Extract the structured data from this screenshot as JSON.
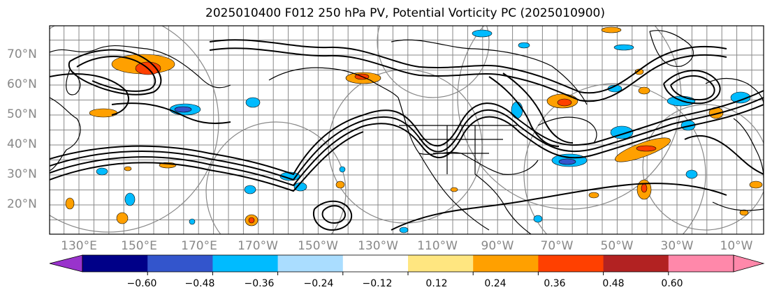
{
  "title": "2025010400 F012 250 hPa PV, Potential Vorticity PC (2025010900)",
  "map": {
    "projection": "plate-carree",
    "variable": "250 hPa PV",
    "lat_labels": [
      "70°N",
      "60°N",
      "50°N",
      "40°N",
      "30°N",
      "20°N"
    ],
    "lon_labels": [
      "130°E",
      "150°E",
      "170°E",
      "170°W",
      "150°W",
      "130°W",
      "110°W",
      "90°W",
      "70°W",
      "50°W",
      "30°W",
      "10°W"
    ],
    "grid": true,
    "contour_color": "#000000",
    "coastline_color": "#000000",
    "circle_color": "#888888"
  },
  "colorbar": {
    "extend": "both",
    "ticks": [
      "−0.60",
      "−0.48",
      "−0.36",
      "−0.24",
      "−0.12",
      "0.12",
      "0.24",
      "0.36",
      "0.48",
      "0.60"
    ],
    "colors": [
      "#9933cc",
      "#000088",
      "#3355cc",
      "#00bbff",
      "#aaddff",
      "#ffffff",
      "#ffe680",
      "#ffa000",
      "#ff4000",
      "#b22222",
      "#ff88aa",
      "#ff88aa"
    ]
  }
}
